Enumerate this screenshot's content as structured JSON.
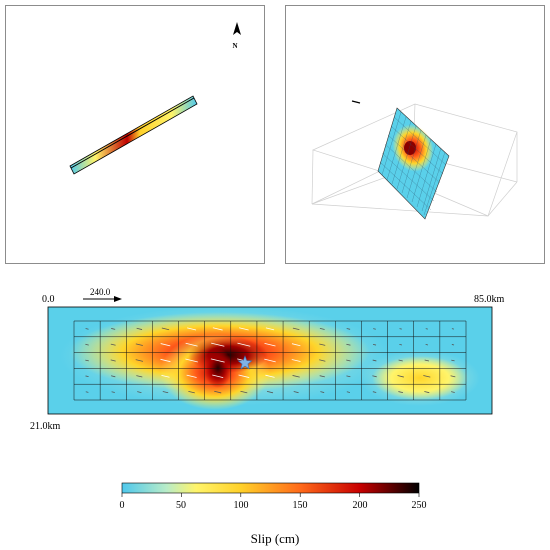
{
  "labels": {
    "north": "N",
    "distance_start": "0.0",
    "distance_end": "85.0km",
    "depth_label": "21.0km",
    "reference_vector": "240.0"
  },
  "colorbar": {
    "title": "Slip (cm)",
    "ticks": [
      "0",
      "50",
      "100",
      "150",
      "200",
      "250"
    ],
    "range": [
      0,
      250
    ]
  },
  "colors": {
    "low": "#5ad0ea",
    "mid": "#fff23a",
    "high": "#d40000",
    "max": "#000000",
    "frame": "#8c8c8c"
  }
}
